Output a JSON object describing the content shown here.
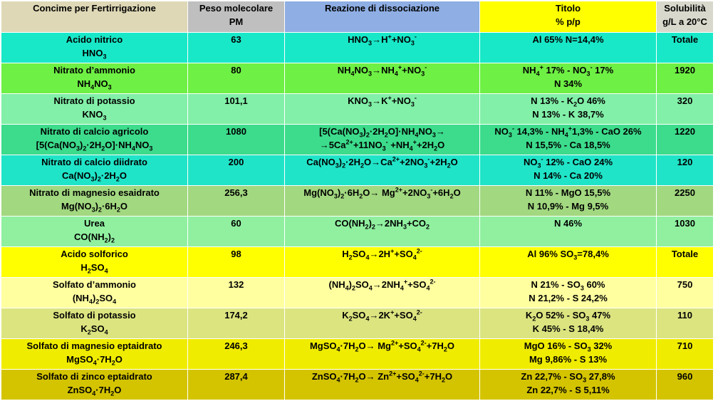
{
  "colors": {
    "header_name": "#ded8b6",
    "header_pm": "#bfbfbf",
    "header_reaction": "#8eaee4",
    "header_titolo": "#ffff00",
    "header_sol": "#d8d8cc"
  },
  "headers": {
    "name": "Concime per Fertirrigazione",
    "pm_line1": "Peso molecolare",
    "pm_line2": "PM",
    "reaction": "Reazione di dissociazione",
    "titolo_line1": "Titolo",
    "titolo_line2": "% p/p",
    "sol_line1": "Solubilità",
    "sol_line2": "g/L a 20°C"
  },
  "rows": [
    {
      "color": "#18e8c8",
      "name": "Acido nitrico",
      "formula": "HNO<sub>3</sub>",
      "pm": "63",
      "reaction": [
        "HNO<sub>3</sub>→H<sup>+</sup>+NO<sub>3</sub><sup>-</sup>"
      ],
      "titolo": [
        "Al 65%  N=14,4%"
      ],
      "sol": "Totale"
    },
    {
      "color": "#6ef044",
      "name": "Nitrato d’ammonio",
      "formula": "NH<sub>4</sub>NO<sub>3</sub>",
      "pm": "80",
      "reaction": [
        "NH<sub>4</sub>NO<sub>3</sub>→NH<sub>4</sub><sup>+</sup>+NO<sub>3</sub><sup>-</sup>"
      ],
      "titolo": [
        "NH<sub>4</sub><sup>+</sup> 17% - NO<sub>3</sub><sup>-</sup> 17%",
        "N 34%"
      ],
      "sol": "1920"
    },
    {
      "color": "#82f0a8",
      "name": "Nitrato di potassio",
      "formula": "KNO<sub>3</sub>",
      "pm": "101,1",
      "reaction": [
        "KNO<sub>3</sub>→K<sup>+</sup>+NO<sub>3</sub><sup>-</sup>"
      ],
      "titolo": [
        "N 13% - K<sub>2</sub>O 46%",
        "N 13% - K 38,7%"
      ],
      "sol": "320"
    },
    {
      "color": "#3cdc8c",
      "name": "Nitrato di calcio agricolo",
      "formula": "[5(Ca(NO<sub>3</sub>)<sub>2</sub>·2H<sub>2</sub>O]·NH<sub>4</sub>NO<sub>3</sub>",
      "pm": "1080",
      "reaction": [
        "[5(Ca(NO<sub>3</sub>)<sub>2</sub>·2H<sub>2</sub>O]·NH<sub>4</sub>NO<sub>3</sub>→",
        "→5Ca<sup>2+</sup>+11NO<sub>3</sub><sup>-</sup> +NH<sub>4</sub><sup>+</sup>+2H<sub>2</sub>O"
      ],
      "titolo": [
        "NO<sub>3</sub><sup>-</sup> 14,3% - NH<sub>4</sub><sup>+</sup>1,3% - CaO 26%",
        "N 15,5% - Ca 18,5%"
      ],
      "sol": "1220"
    },
    {
      "color": "#20e4c8",
      "name": "Nitrato di calcio diidrato",
      "formula": "Ca(NO<sub>3</sub>)<sub>2</sub>·2H<sub>2</sub>O",
      "pm": "200",
      "reaction": [
        "Ca(NO<sub>3</sub>)<sub>2</sub>·2H<sub>2</sub>O→Ca<sup>2+</sup>+2NO<sub>3</sub><sup>-</sup>+2H<sub>2</sub>O"
      ],
      "titolo": [
        "NO<sub>3</sub><sup>-</sup> 12% - CaO 24%",
        "N 14% - Ca 20%"
      ],
      "sol": "120"
    },
    {
      "color": "#a2d880",
      "name": "Nitrato di magnesio esaidrato",
      "formula": "Mg(NO<sub>3</sub>)<sub>2</sub>·6H<sub>2</sub>O",
      "pm": "256,3",
      "reaction": [
        "Mg(NO<sub>3</sub>)<sub>2</sub>·6H<sub>2</sub>O→ Mg<sup>2+</sup>+2NO<sub>3</sub><sup>-</sup>+6H<sub>2</sub>O"
      ],
      "titolo": [
        "N 11% - MgO 15,5%",
        "N 10,9% - Mg 9,5%"
      ],
      "sol": "2250"
    },
    {
      "color": "#90f0a0",
      "name": "Urea",
      "formula": "CO(NH<sub>2</sub>)<sub>2</sub>",
      "pm": "60",
      "reaction": [
        "CO(NH<sub>2</sub>)<sub>2</sub>→2NH<sub>3</sub>+CO<sub>2</sub>"
      ],
      "titolo": [
        "N 46%"
      ],
      "sol": "1030"
    },
    {
      "color": "#ffff00",
      "name": "Acido solforico",
      "formula": "H<sub>2</sub>SO<sub>4</sub>",
      "pm": "98",
      "reaction": [
        "H<sub>2</sub>SO<sub>4</sub>→2H<sup>+</sup>+SO<sub>4</sub><sup>2-</sup>"
      ],
      "titolo": [
        "Al 96%  SO<sub>3</sub>=78,4%"
      ],
      "sol": "Totale"
    },
    {
      "color": "#ffffa0",
      "name": "Solfato d’ammonio",
      "formula": "(NH<sub>4</sub>)<sub>2</sub>SO<sub>4</sub>",
      "pm": "132",
      "reaction": [
        "(NH<sub>4</sub>)<sub>2</sub>SO<sub>4</sub>→2NH<sub>4</sub><sup>+</sup>+SO<sub>4</sub><sup>2-</sup>"
      ],
      "titolo": [
        "N 21% - SO<sub>3</sub> 60%",
        "N 21,2% - S 24,2%"
      ],
      "sol": "750"
    },
    {
      "color": "#dce480",
      "name": "Solfato di potassio",
      "formula": "K<sub>2</sub>SO<sub>4</sub>",
      "pm": "174,2",
      "reaction": [
        "K<sub>2</sub>SO<sub>4</sub>→2K<sup>+</sup>+SO<sub>4</sub><sup>2-</sup>"
      ],
      "titolo": [
        "K<sub>2</sub>O 52% - SO<sub>3</sub> 47%",
        "K 45% - S 18,4%"
      ],
      "sol": "110"
    },
    {
      "color": "#f0ec00",
      "name": "Solfato di magnesio eptaidrato",
      "formula": "MgSO<sub>4</sub>·7H<sub>2</sub>O",
      "pm": "246,3",
      "reaction": [
        "MgSO<sub>4</sub>·7H<sub>2</sub>O→ Mg<sup>2+</sup>+SO<sub>4</sub><sup>2-</sup>+7H<sub>2</sub>O"
      ],
      "titolo": [
        "MgO 16% - SO<sub>3</sub> 32%",
        "Mg 9,86% - S 13%"
      ],
      "sol": "710"
    },
    {
      "color": "#d4c400",
      "name": "Solfato di zinco eptaidrato",
      "formula": "ZnSO<sub>4</sub>·7H<sub>2</sub>O",
      "pm": "287,4",
      "reaction": [
        "ZnSO<sub>4</sub>·7H<sub>2</sub>O→ Zn<sup>2+</sup>+SO<sub>4</sub><sup>2-</sup>+7H<sub>2</sub>O"
      ],
      "titolo": [
        "Zn 22,7% - SO<sub>3</sub> 27,8%",
        "Zn 22,7% - S 5,11%"
      ],
      "sol": "960"
    }
  ]
}
